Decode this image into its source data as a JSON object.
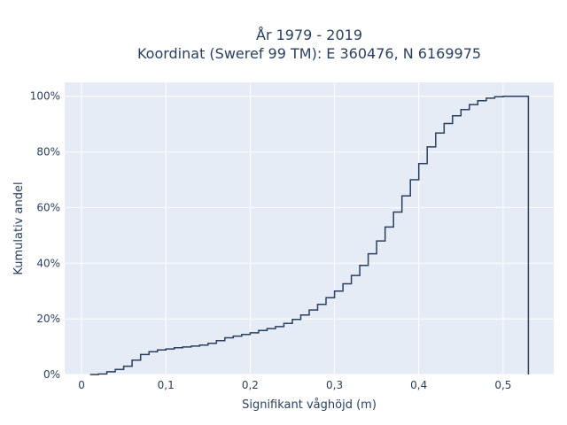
{
  "chart_data": {
    "type": "line",
    "line_shape": "step",
    "title": "År 1979 - 2019",
    "subtitle": "Koordinat (Sweref 99 TM): E 360476, N 6169975",
    "xlabel": "Signifikant våghöjd (m)",
    "ylabel": "Kumulativ andel",
    "xlim": [
      -0.02,
      0.56
    ],
    "ylim": [
      0,
      1.05
    ],
    "x_ticks": [
      0,
      0.1,
      0.2,
      0.3,
      0.4,
      0.5
    ],
    "x_tick_labels": [
      "0",
      "0,1",
      "0,2",
      "0,3",
      "0,4",
      "0,5"
    ],
    "y_ticks": [
      0,
      0.2,
      0.4,
      0.6,
      0.8,
      1.0
    ],
    "y_tick_labels": [
      "0%",
      "20%",
      "40%",
      "60%",
      "80%",
      "100%"
    ],
    "grid": true,
    "series": [
      {
        "x": [
          0.01,
          0.02,
          0.03,
          0.04,
          0.05,
          0.06,
          0.07,
          0.08,
          0.09,
          0.1,
          0.11,
          0.12,
          0.13,
          0.14,
          0.15,
          0.16,
          0.17,
          0.18,
          0.19,
          0.2,
          0.21,
          0.22,
          0.23,
          0.24,
          0.25,
          0.26,
          0.27,
          0.28,
          0.29,
          0.3,
          0.31,
          0.32,
          0.33,
          0.34,
          0.35,
          0.36,
          0.37,
          0.38,
          0.39,
          0.4,
          0.41,
          0.42,
          0.43,
          0.44,
          0.45,
          0.46,
          0.47,
          0.48,
          0.49,
          0.5,
          0.51,
          0.52,
          0.53
        ],
        "y": [
          0.0,
          0.002,
          0.01,
          0.018,
          0.03,
          0.052,
          0.072,
          0.082,
          0.088,
          0.092,
          0.096,
          0.099,
          0.102,
          0.106,
          0.112,
          0.122,
          0.132,
          0.138,
          0.144,
          0.15,
          0.158,
          0.165,
          0.172,
          0.184,
          0.198,
          0.214,
          0.232,
          0.252,
          0.276,
          0.3,
          0.326,
          0.356,
          0.392,
          0.434,
          0.48,
          0.53,
          0.584,
          0.642,
          0.7,
          0.758,
          0.818,
          0.868,
          0.902,
          0.93,
          0.952,
          0.97,
          0.984,
          0.993,
          0.998,
          1.0,
          1.0,
          1.0,
          0.0
        ]
      }
    ],
    "colors": {
      "plot_bg": "#e5ecf6",
      "grid": "#ffffff",
      "line": "#2a3f5f",
      "text": "#2a3f5f"
    }
  }
}
